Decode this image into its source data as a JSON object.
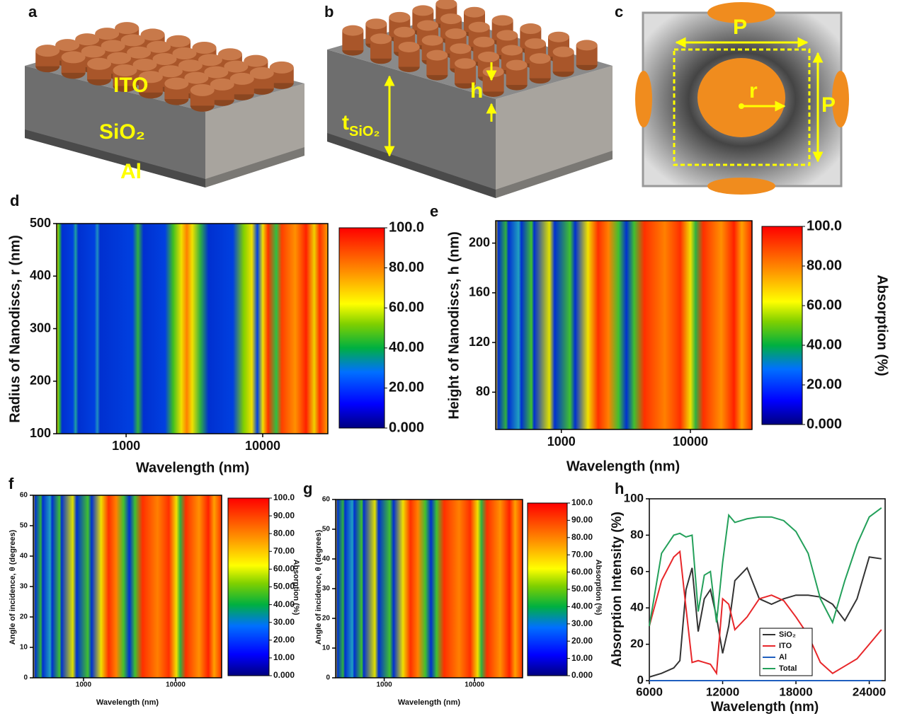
{
  "panel_labels": [
    "a",
    "b",
    "c",
    "d",
    "e",
    "f",
    "g",
    "h"
  ],
  "diagram_a": {
    "labels": [
      "ITO",
      "SiO₂",
      "Al"
    ]
  },
  "diagram_b": {
    "thickness_label": {
      "main": "t",
      "sub": "SiO₂"
    },
    "height_label": "h"
  },
  "diagram_c": {
    "labels": [
      "P",
      "P",
      "r"
    ]
  },
  "chart_data": [
    {
      "type": "heatmap",
      "xlabel": "Wavelength (nm)",
      "ylabel": "Radius of Nanodiscs, r (nm)",
      "xscale": "log",
      "xlim": [
        310,
        30000
      ],
      "xticks": [
        1000,
        10000
      ],
      "ylim": [
        100,
        500
      ],
      "yticks": [
        100,
        200,
        300,
        400,
        500
      ],
      "colorbar": {
        "lim": [
          0,
          100
        ],
        "ticks": [
          {
            "value": 0,
            "label": "0.000"
          },
          {
            "value": 20,
            "label": "20.00"
          },
          {
            "value": 40,
            "label": "40.00"
          },
          {
            "value": 60,
            "label": "60.00"
          },
          {
            "value": 80,
            "label": "80.00"
          },
          {
            "value": 100,
            "label": "100.0"
          }
        ]
      }
    },
    {
      "type": "heatmap",
      "xlabel": "Wavelength (nm)",
      "ylabel": "Height of Nanodiscs, h (nm)",
      "xscale": "log",
      "xlim": [
        310,
        30000
      ],
      "xticks": [
        1000,
        10000
      ],
      "ylim": [
        50,
        218
      ],
      "yticks": [
        80,
        120,
        160,
        200
      ],
      "colorbar": {
        "label": "Absorption (%)",
        "lim": [
          0,
          100
        ],
        "ticks": [
          {
            "value": 0,
            "label": "0.000"
          },
          {
            "value": 20,
            "label": "20.00"
          },
          {
            "value": 40,
            "label": "40.00"
          },
          {
            "value": 60,
            "label": "60.00"
          },
          {
            "value": 80,
            "label": "80.00"
          },
          {
            "value": 100,
            "label": "100.0"
          }
        ]
      }
    },
    {
      "type": "heatmap",
      "xlabel": "Wavelength (nm)",
      "ylabel": "Angle of incidence, θ (degrees)",
      "xscale": "log",
      "xlim": [
        285,
        31600
      ],
      "xticks": [
        1000,
        10000
      ],
      "ylim": [
        0,
        60
      ],
      "yticks": [
        0,
        10,
        20,
        30,
        40,
        50,
        60
      ],
      "colorbar": {
        "label": "Absorption (%)",
        "lim": [
          0,
          100
        ],
        "ticks": [
          {
            "value": 0,
            "label": "0.000"
          },
          {
            "value": 10,
            "label": "10.00"
          },
          {
            "value": 20,
            "label": "20.00"
          },
          {
            "value": 30,
            "label": "30.00"
          },
          {
            "value": 40,
            "label": "40.00"
          },
          {
            "value": 50,
            "label": "50.00"
          },
          {
            "value": 60,
            "label": "60.00"
          },
          {
            "value": 70,
            "label": "70.00"
          },
          {
            "value": 80,
            "label": "80.00"
          },
          {
            "value": 90,
            "label": "90.00"
          },
          {
            "value": 100,
            "label": "100.0"
          }
        ]
      }
    },
    {
      "type": "heatmap",
      "xlabel": "Wavelength (nm)",
      "ylabel": "Angle of incidence, θ (degrees)",
      "xscale": "log",
      "xlim": [
        290,
        34000
      ],
      "xticks": [
        1000,
        10000
      ],
      "ylim": [
        0,
        60
      ],
      "yticks": [
        0,
        10,
        20,
        30,
        40,
        50,
        60
      ],
      "colorbar": {
        "label": "Absorption (%)",
        "lim": [
          0,
          100
        ],
        "ticks": [
          {
            "value": 0,
            "label": "0.000"
          },
          {
            "value": 10,
            "label": "10.00"
          },
          {
            "value": 20,
            "label": "20.00"
          },
          {
            "value": 30,
            "label": "30.00"
          },
          {
            "value": 40,
            "label": "40.00"
          },
          {
            "value": 50,
            "label": "50.00"
          },
          {
            "value": 60,
            "label": "60.00"
          },
          {
            "value": 70,
            "label": "70.00"
          },
          {
            "value": 80,
            "label": "80.00"
          },
          {
            "value": 90,
            "label": "90.00"
          },
          {
            "value": 100,
            "label": "100.0"
          }
        ]
      }
    },
    {
      "type": "line",
      "xlabel": "Wavelength (nm)",
      "ylabel": "Absorption Intensity (%)",
      "x": [
        6000,
        7000,
        8000,
        8500,
        9000,
        9500,
        10000,
        10500,
        11000,
        11500,
        12000,
        12500,
        13000,
        14000,
        15000,
        16000,
        17000,
        18000,
        19000,
        20000,
        21000,
        22000,
        23000,
        24000,
        25000
      ],
      "xlim": [
        6000,
        25300
      ],
      "xticks": [
        6000,
        12000,
        18000,
        24000
      ],
      "ylim": [
        0,
        100
      ],
      "yticks": [
        0,
        20,
        40,
        60,
        80,
        100
      ],
      "series": [
        {
          "name": "SiO₂",
          "color": "#333333",
          "values": [
            2,
            4,
            7,
            11,
            50,
            62,
            27,
            45,
            50,
            35,
            15,
            30,
            55,
            62,
            45,
            42,
            45,
            47,
            47,
            46,
            42,
            33,
            45,
            68,
            67
          ]
        },
        {
          "name": "ITO",
          "color": "#e8272a",
          "values": [
            30,
            55,
            68,
            71,
            40,
            10,
            11,
            10,
            9,
            4,
            45,
            42,
            28,
            35,
            45,
            47,
            44,
            35,
            25,
            10,
            4,
            8,
            12,
            20,
            28
          ]
        },
        {
          "name": "Al",
          "color": "#1f5fbf",
          "values": [
            0,
            0,
            0,
            0,
            0,
            0,
            0,
            0,
            0,
            0,
            0,
            0,
            0,
            0,
            0,
            0,
            0,
            0,
            0,
            0,
            0,
            0,
            0,
            0,
            0
          ]
        },
        {
          "name": "Total",
          "color": "#23a05a",
          "values": [
            30,
            70,
            80,
            81,
            79,
            80,
            38,
            58,
            60,
            32,
            65,
            91,
            87,
            89,
            90,
            90,
            88,
            82,
            70,
            45,
            32,
            55,
            75,
            90,
            95
          ]
        }
      ]
    }
  ]
}
